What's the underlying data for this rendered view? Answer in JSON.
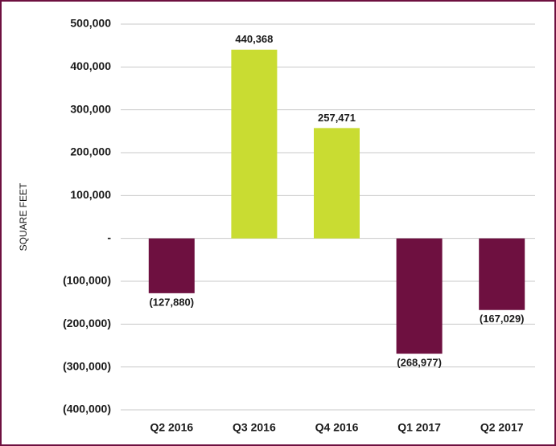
{
  "chart_data": {
    "type": "bar",
    "y_label": "SQUARE FEET",
    "categories": [
      "Q2 2016",
      "Q3 2016",
      "Q4 2016",
      "Q1 2017",
      "Q2 2017"
    ],
    "values": [
      -127880,
      440368,
      257471,
      -268977,
      -167029
    ],
    "value_labels": [
      "(127,880)",
      "440,368",
      "257,471",
      "(268,977)",
      "(167,029)"
    ],
    "colors": [
      "#6e1040",
      "#c9dc32",
      "#c9dc32",
      "#6e1040",
      "#6e1040"
    ],
    "ylim": [
      -400000,
      500000
    ],
    "yticks": [
      {
        "value": -400000,
        "label": "(400,000)"
      },
      {
        "value": -300000,
        "label": "(300,000)"
      },
      {
        "value": -200000,
        "label": "(200,000)"
      },
      {
        "value": -100000,
        "label": "(100,000)"
      },
      {
        "value": 0,
        "label": "-"
      },
      {
        "value": 100000,
        "label": "100,000"
      },
      {
        "value": 200000,
        "label": "200,000"
      },
      {
        "value": 300000,
        "label": "300,000"
      },
      {
        "value": 400000,
        "label": "400,000"
      },
      {
        "value": 500000,
        "label": "500,000"
      }
    ],
    "grid": true
  }
}
